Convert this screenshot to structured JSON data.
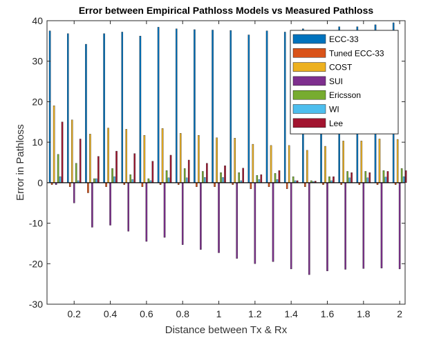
{
  "chart_data": {
    "type": "bar",
    "title": "Error between Empirical Pathloss Models vs Measured Pathloss",
    "xlabel": "Distance between Tx & Rx",
    "ylabel": "Error in Pathloss",
    "ylim": [
      -30,
      40
    ],
    "xlim": [
      0.05,
      2.03
    ],
    "xticks": [
      0.2,
      0.4,
      0.6,
      0.8,
      1,
      1.2,
      1.4,
      1.6,
      1.8,
      2
    ],
    "xtick_labels": [
      "0.2",
      "0.4",
      "0.6",
      "0.8",
      "1",
      "1.2",
      "1.4",
      "1.6",
      "1.8",
      "2"
    ],
    "yticks": [
      -30,
      -20,
      -10,
      0,
      10,
      20,
      30,
      40
    ],
    "ytick_labels": [
      "-30",
      "-20",
      "-10",
      "0",
      "10",
      "20",
      "30",
      "40"
    ],
    "legend_position": "top-right",
    "grid": false,
    "x": [
      0.1,
      0.2,
      0.3,
      0.4,
      0.5,
      0.6,
      0.7,
      0.8,
      0.9,
      1.0,
      1.1,
      1.2,
      1.3,
      1.4,
      1.5,
      1.6,
      1.7,
      1.8,
      1.9,
      2.0
    ],
    "series": [
      {
        "name": "ECC-33",
        "color": "#0072BD",
        "values": [
          37.5,
          36.8,
          34.2,
          36.8,
          37.2,
          36.2,
          38.4,
          38.0,
          37.8,
          37.7,
          37.6,
          36.5,
          37.5,
          37.2,
          38.0,
          37.5,
          38.5,
          38.5,
          39.0,
          39.5
        ]
      },
      {
        "name": "Tuned ECC-33",
        "color": "#D95319",
        "values": [
          -0.5,
          -1.0,
          -2.5,
          -1.0,
          -0.5,
          -1.0,
          -0.5,
          -0.5,
          -1.0,
          -1.0,
          -0.5,
          -1.5,
          -1.0,
          -1.5,
          -1.0,
          -0.5,
          -0.5,
          -0.5,
          -0.5,
          -0.5
        ]
      },
      {
        "name": "COST",
        "color": "#EDB120",
        "values": [
          19.0,
          15.5,
          12.0,
          13.5,
          13.2,
          11.7,
          13.4,
          12.2,
          11.7,
          11.1,
          11.0,
          9.5,
          9.2,
          9.2,
          8.0,
          9.0,
          10.3,
          10.3,
          10.8,
          10.7
        ]
      },
      {
        "name": "SUI",
        "color": "#7E2F8E",
        "values": [
          -0.5,
          -5.0,
          -11.0,
          -10.5,
          -12.0,
          -14.5,
          -13.5,
          -15.3,
          -16.5,
          -17.3,
          -18.7,
          -20.0,
          -19.5,
          -21.3,
          -22.7,
          -21.8,
          -21.4,
          -21.2,
          -21.1,
          -21.3
        ]
      },
      {
        "name": "Ericsson",
        "color": "#77AC30",
        "values": [
          7.0,
          4.8,
          1.0,
          3.5,
          2.0,
          1.0,
          3.0,
          3.5,
          2.8,
          2.5,
          2.5,
          1.8,
          2.3,
          1.5,
          0.5,
          1.5,
          2.8,
          2.8,
          3.0,
          3.5
        ]
      },
      {
        "name": "WI",
        "color": "#4DBEEE",
        "values": [
          1.5,
          0.5,
          1.0,
          1.5,
          0.8,
          0.5,
          1.2,
          1.2,
          1.3,
          1.3,
          0.5,
          0.8,
          0.8,
          0.5,
          0.3,
          0.5,
          1.2,
          1.2,
          1.4,
          1.5
        ]
      },
      {
        "name": "Lee",
        "color": "#A2142F",
        "values": [
          15.0,
          10.8,
          6.5,
          7.8,
          7.2,
          5.3,
          6.8,
          5.6,
          4.8,
          4.2,
          3.6,
          2.0,
          3.0,
          0.5,
          0.4,
          1.5,
          2.5,
          2.5,
          2.8,
          3.0
        ]
      }
    ]
  }
}
